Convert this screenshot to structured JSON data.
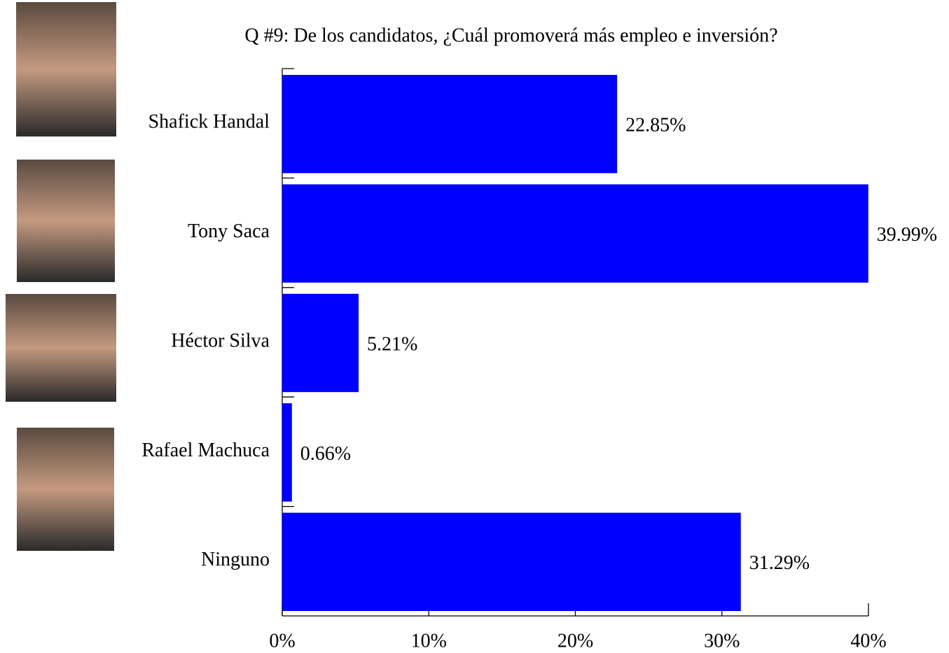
{
  "chart_data": {
    "type": "hbar",
    "title": "Q #9: De los candidatos, ¿Cuál promoverá más empleo e inversión?",
    "categories": [
      "Shafick Handal",
      "Tony Saca",
      "Héctor Silva",
      "Rafael Machuca",
      "Ninguno"
    ],
    "values": [
      22.85,
      39.99,
      5.21,
      0.66,
      31.29
    ],
    "value_labels": [
      "22.85%",
      "39.99%",
      "5.21%",
      "0.66%",
      "31.29%"
    ],
    "color": "#0000ff",
    "xlim": [
      0,
      40
    ],
    "xticks": [
      {
        "value": 0,
        "label": "0%"
      },
      {
        "value": 10,
        "label": "10%"
      },
      {
        "value": 20,
        "label": "20%"
      },
      {
        "value": 30,
        "label": "30%"
      },
      {
        "value": 40,
        "label": "40%"
      }
    ]
  }
}
